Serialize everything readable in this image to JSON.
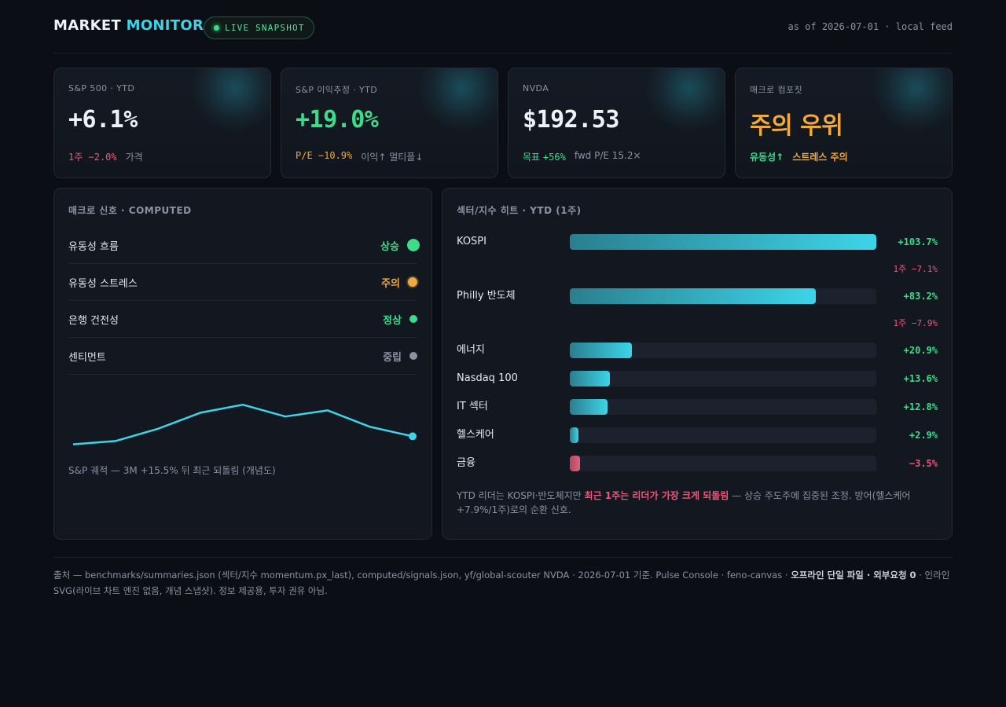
{
  "header": {
    "brand_part1": "MARKET",
    "brand_part2": "MONITOR",
    "live_label": "LIVE SNAPSHOT",
    "asof": "as of 2026-07-01 · local feed"
  },
  "kpis": [
    {
      "label": "S&P 500 · YTD",
      "value": "+6.1%",
      "sub1": "1주 −2.0%",
      "sub2": "가격"
    },
    {
      "label": "S&P 이익추정 · YTD",
      "value": "+19.0%",
      "sub1": "P/E −10.9%",
      "sub2": "이익↑ 멀티플↓"
    },
    {
      "label": "NVDA",
      "value": "$192.53",
      "sub1a": "목표",
      "sub1b": "+56%",
      "sub2": "fwd P/E 15.2×"
    },
    {
      "label": "매크로 컴포짓",
      "value": "주의 우위",
      "sub1": "유동성↑",
      "sub2": "스트레스 주의"
    }
  ],
  "signals": {
    "title": "매크로 신호 · COMPUTED",
    "rows": [
      {
        "name": "유동성 흐름",
        "state": "상승",
        "color": "#3ddc8a"
      },
      {
        "name": "유동성 스트레스",
        "state": "주의",
        "color": "#f0a93c"
      },
      {
        "name": "은행 건전성",
        "state": "정상",
        "color": "#3ddc8a"
      },
      {
        "name": "센티먼트",
        "state": "중립",
        "color": "#8a93a3"
      }
    ],
    "caption": "S&P 궤적 — 3M +15.5% 뒤 최근 되돌림 (개념도)"
  },
  "chart_data": {
    "type": "line",
    "title": "",
    "x": [
      1,
      2,
      3,
      4,
      5,
      6,
      7,
      8,
      9
    ],
    "series": [
      {
        "values": [
          0.9,
          1.6,
          4.2,
          7.6,
          9.3,
          6.8,
          8.1,
          4.6,
          2.6
        ]
      }
    ],
    "xlabel": "",
    "ylabel": "",
    "ylim": [
      0,
      12
    ],
    "grid": false
  },
  "sectors": {
    "title": "섹터/지수 히트 · YTD (1주)",
    "max_abs": 103.7,
    "rows": [
      {
        "label": "KOSPI",
        "value": 103.7,
        "value_text": "+103.7%",
        "week": "1주 −7.1%"
      },
      {
        "label": "Philly 반도체",
        "value": 83.2,
        "value_text": "+83.2%",
        "week": "1주 −7.9%"
      },
      {
        "label": "에너지",
        "value": 20.9,
        "value_text": "+20.9%"
      },
      {
        "label": "Nasdaq 100",
        "value": 13.6,
        "value_text": "+13.6%"
      },
      {
        "label": "IT 섹터",
        "value": 12.8,
        "value_text": "+12.8%"
      },
      {
        "label": "헬스케어",
        "value": 2.9,
        "value_text": "+2.9%"
      },
      {
        "label": "금융",
        "value": -3.5,
        "value_text": "−3.5%"
      }
    ],
    "note_part1": "YTD 리더는 KOSPI·반도체지만 ",
    "note_highlight": "최근 1주는 리더가 가장 크게 되돌림",
    "note_part2": " — 상승 주도주에 집중된 조정. 방어(헬스케어 +7.9%/1주)로의 순환 신호."
  },
  "footer": {
    "part1": "출처 — benchmarks/summaries.json (섹터/지수 momentum.px_last), computed/signals.json, yf/global-scouter NVDA · 2026-07-01 기준. Pulse Console · feno-canvas · ",
    "bold": "오프라인 단일 파일 · 외부요청 0",
    "part2": " · 인라인 SVG(라이브 차트 엔진 없음, 개념 스냅샷). 정보 제공용, 투자 권유 아님."
  },
  "colors": {
    "accent": "#3dd4e8",
    "positive": "#3ddc8a",
    "negative": "#f0587a",
    "warning": "#f0a93c"
  }
}
